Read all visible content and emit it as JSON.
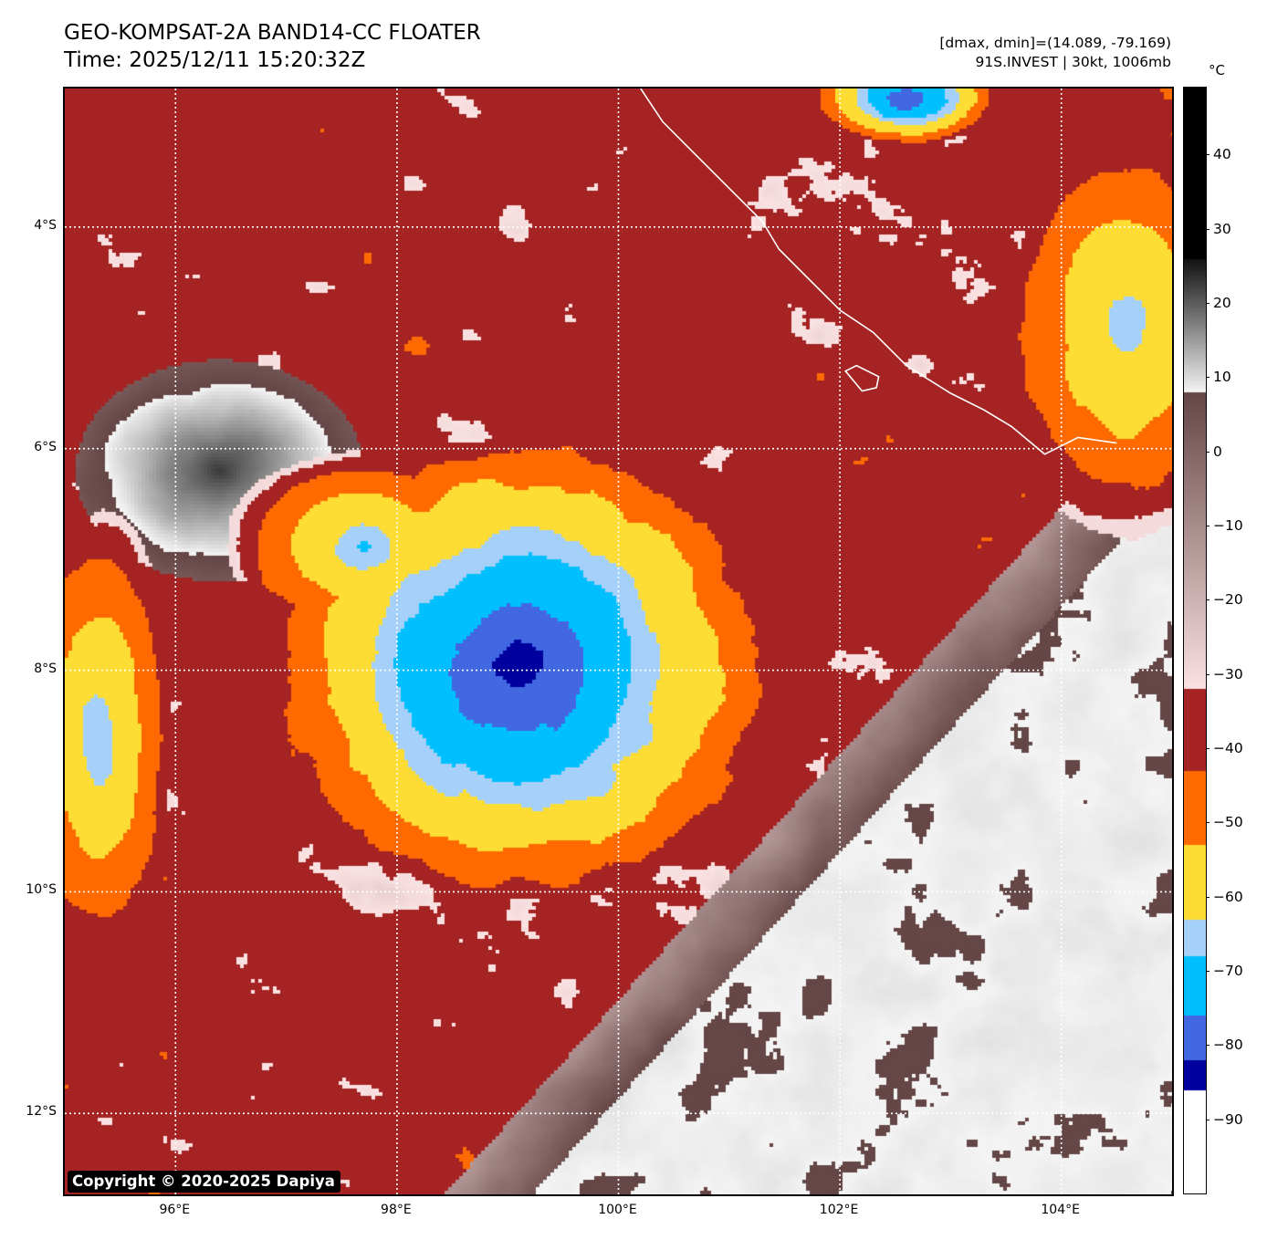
{
  "header": {
    "title": "GEO-KOMPSAT-2A BAND14-CC FLOATER",
    "time_label": "Time: 2025/12/11 15:20:32Z",
    "range_label": "[dmax, dmin]=(14.089, -79.169)",
    "storm_label": "91S.INVEST | 30kt, 1006mb"
  },
  "storm": {
    "id": "91S.INVEST",
    "max_wind_kt": 30,
    "pressure_mb": 1006,
    "center_lon": 99.1,
    "center_lat": -8.0
  },
  "data_range": {
    "dmax": 14.089,
    "dmin": -79.169
  },
  "map": {
    "extent": {
      "lon_min": 95.0,
      "lon_max": 105.0,
      "lat_min": -12.73,
      "lat_max": -2.75
    },
    "lat_ticks": [
      {
        "value": -4,
        "label": "4°S"
      },
      {
        "value": -6,
        "label": "6°S"
      },
      {
        "value": -8,
        "label": "8°S"
      },
      {
        "value": -10,
        "label": "10°S"
      },
      {
        "value": -12,
        "label": "12°S"
      }
    ],
    "lon_ticks": [
      {
        "value": 96,
        "label": "96°E"
      },
      {
        "value": 98,
        "label": "98°E"
      },
      {
        "value": 100,
        "label": "100°E"
      },
      {
        "value": 102,
        "label": "102°E"
      },
      {
        "value": 104,
        "label": "104°E"
      }
    ],
    "gridlines": true,
    "coastline_color": "#ffffff"
  },
  "colorbar": {
    "unit": "°C",
    "range": [
      -100,
      49
    ],
    "ticks": [
      {
        "value": 40,
        "label": "40"
      },
      {
        "value": 30,
        "label": "30"
      },
      {
        "value": 20,
        "label": "20"
      },
      {
        "value": 10,
        "label": "10"
      },
      {
        "value": 0,
        "label": "0"
      },
      {
        "value": -10,
        "label": "−10"
      },
      {
        "value": -20,
        "label": "−20"
      },
      {
        "value": -30,
        "label": "−30"
      },
      {
        "value": -40,
        "label": "−40"
      },
      {
        "value": -50,
        "label": "−50"
      },
      {
        "value": -60,
        "label": "−60"
      },
      {
        "value": -70,
        "label": "−70"
      },
      {
        "value": -80,
        "label": "−80"
      },
      {
        "value": -90,
        "label": "−90"
      }
    ],
    "segments": [
      {
        "from": 26,
        "to": 49,
        "type": "solid",
        "color": "#000000"
      },
      {
        "from": 8,
        "to": 26,
        "type": "gradient",
        "color_from": "#f4f4f4",
        "color_to": "#111111"
      },
      {
        "from": -32,
        "to": 8,
        "type": "gradient",
        "color_from": "#fbe2e2",
        "color_to": "#654646"
      },
      {
        "from": -43,
        "to": -32,
        "type": "solid",
        "color": "#a52323"
      },
      {
        "from": -53,
        "to": -43,
        "type": "solid",
        "color": "#ff6a00"
      },
      {
        "from": -63,
        "to": -53,
        "type": "solid",
        "color": "#fddd33"
      },
      {
        "from": -68,
        "to": -63,
        "type": "solid",
        "color": "#a5d0fa"
      },
      {
        "from": -76,
        "to": -68,
        "type": "solid",
        "color": "#00bfff"
      },
      {
        "from": -82,
        "to": -76,
        "type": "solid",
        "color": "#4168e1"
      },
      {
        "from": -86,
        "to": -82,
        "type": "solid",
        "color": "#00009e"
      },
      {
        "from": -100,
        "to": -86,
        "type": "solid",
        "color": "#ffffff"
      }
    ]
  },
  "features": {
    "cloud_systems": [
      {
        "name": "invest-91s-core",
        "lon": 99.1,
        "lat": -8.0,
        "rx_deg": 1.85,
        "ry_deg": 1.7,
        "min_temp": -82
      },
      {
        "name": "northwest-cap",
        "lon": 97.7,
        "lat": -6.9,
        "rx_deg": 0.9,
        "ry_deg": 0.65,
        "min_temp": -66
      },
      {
        "name": "top-cluster",
        "lon": 102.6,
        "lat": -2.85,
        "rx_deg": 0.65,
        "ry_deg": 0.35,
        "min_temp": -80
      },
      {
        "name": "east-cluster",
        "lon": 104.6,
        "lat": -4.9,
        "rx_deg": 0.9,
        "ry_deg": 1.4,
        "min_temp": -64
      },
      {
        "name": "west-edge-band",
        "lon": 95.3,
        "lat": -8.6,
        "rx_deg": 0.55,
        "ry_deg": 1.5,
        "min_temp": -66
      }
    ],
    "warm_region": {
      "name": "southeast-clear-ocean",
      "temp": 14
    }
  },
  "copyright": "Copyright © 2020-2025 Dapiya"
}
